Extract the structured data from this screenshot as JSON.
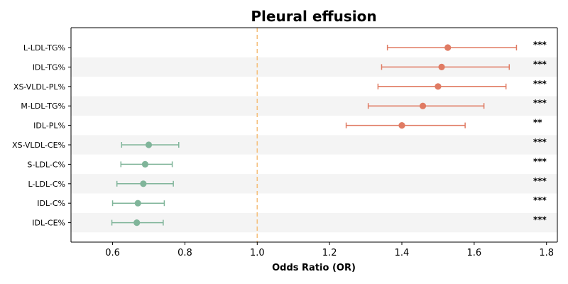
{
  "chart_data": {
    "type": "forest",
    "title": "Pleural effusion",
    "xlabel": "Odds Ratio (OR)",
    "ylabel": "",
    "xlim": [
      0.485,
      1.83
    ],
    "x_ticks": [
      "0.6",
      "0.8",
      "1.0",
      "1.2",
      "1.4",
      "1.6",
      "1.8"
    ],
    "x_tick_values": [
      0.6,
      0.8,
      1.0,
      1.2,
      1.4,
      1.6,
      1.8
    ],
    "reference_line": 1.0,
    "colors": {
      "increased_risk": "#e07b63",
      "decreased_risk": "#80b59a",
      "reference_line": "#f5c07e",
      "row_stripe": "#f4f4f4"
    },
    "rows": [
      {
        "label": "L-LDL-TG%",
        "or": 1.527,
        "ci_low": 1.36,
        "ci_high": 1.717,
        "sig": "***"
      },
      {
        "label": "IDL-TG%",
        "or": 1.51,
        "ci_low": 1.344,
        "ci_high": 1.697,
        "sig": "***"
      },
      {
        "label": "XS-VLDL-PL%",
        "or": 1.5,
        "ci_low": 1.334,
        "ci_high": 1.688,
        "sig": "***"
      },
      {
        "label": "M-LDL-TG%",
        "or": 1.458,
        "ci_low": 1.307,
        "ci_high": 1.627,
        "sig": "***"
      },
      {
        "label": "IDL-PL%",
        "or": 1.4,
        "ci_low": 1.246,
        "ci_high": 1.575,
        "sig": "**"
      },
      {
        "label": "XS-VLDL-CE%",
        "or": 0.7,
        "ci_low": 0.625,
        "ci_high": 0.783,
        "sig": "***"
      },
      {
        "label": "S-LDL-C%",
        "or": 0.69,
        "ci_low": 0.623,
        "ci_high": 0.765,
        "sig": "***"
      },
      {
        "label": "L-LDL-C%",
        "or": 0.685,
        "ci_low": 0.612,
        "ci_high": 0.768,
        "sig": "***"
      },
      {
        "label": "IDL-C%",
        "or": 0.67,
        "ci_low": 0.6,
        "ci_high": 0.743,
        "sig": "***"
      },
      {
        "label": "IDL-CE%",
        "or": 0.667,
        "ci_low": 0.598,
        "ci_high": 0.74,
        "sig": "***"
      }
    ]
  }
}
